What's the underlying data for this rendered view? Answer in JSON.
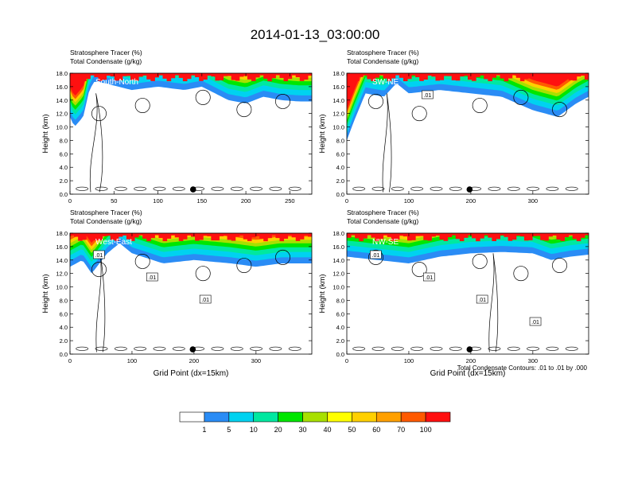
{
  "figure": {
    "title": "2014-01-13_03:00:00",
    "footnote": "Total Condensate Contours: .01 to .01 by .000",
    "colorbar": {
      "colors": [
        "#ffffff",
        "#2a8cf5",
        "#00d2f0",
        "#00e8a0",
        "#00e600",
        "#a8e000",
        "#ffff00",
        "#ffd000",
        "#ffa000",
        "#ff5a00",
        "#ff1010"
      ],
      "labels": [
        "1",
        "5",
        "10",
        "20",
        "30",
        "40",
        "50",
        "60",
        "70",
        "100"
      ]
    }
  },
  "chart_data": [
    {
      "type": "heatmap",
      "panel_label": "South-North",
      "header_line1": "Stratosphere Tracer   (%)",
      "header_line2": "Total Condensate   (g/kg)",
      "ylabel": "Height (km)",
      "xlabel": "",
      "xlim": [
        0,
        275
      ],
      "ylim": [
        0,
        18
      ],
      "x_ticks": [
        "0",
        "50",
        "100",
        "150",
        "200",
        "250"
      ],
      "x_tick_values": [
        0,
        50,
        100,
        150,
        200,
        250
      ],
      "y_ticks": [
        "0.0",
        "2.0",
        "4.0",
        "6.0",
        "8.0",
        "10.0",
        "12.0",
        "14.0",
        "16.0",
        "18.0"
      ],
      "marker_x": 140,
      "contour_labels": [],
      "tropopause_km": [
        [
          0,
          11.5
        ],
        [
          5,
          10
        ],
        [
          15,
          11.5
        ],
        [
          22,
          15.5
        ],
        [
          28,
          16.8
        ],
        [
          40,
          16.5
        ],
        [
          70,
          15.5
        ],
        [
          100,
          16
        ],
        [
          130,
          15.5
        ],
        [
          150,
          16
        ],
        [
          180,
          14
        ],
        [
          200,
          13.5
        ],
        [
          220,
          14.5
        ],
        [
          240,
          14
        ],
        [
          260,
          13.8
        ],
        [
          275,
          13.8
        ]
      ],
      "tracer_levels": [
        {
          "pct": 1,
          "band_km": 0.9
        },
        {
          "pct": 5,
          "band_km": 0.8
        },
        {
          "pct": 10,
          "band_km": 0.7
        },
        {
          "pct": 20,
          "band_km": 0.6
        },
        {
          "pct": 30,
          "band_km": 0.5
        },
        {
          "pct": 50,
          "band_km": 0.5
        },
        {
          "pct": 70,
          "band_km": 0.5
        },
        {
          "pct": 100,
          "band_km": 0
        }
      ]
    },
    {
      "type": "heatmap",
      "panel_label": "SW-NE",
      "header_line1": "Stratosphere Tracer   (%)",
      "header_line2": "Total Condensate   (g/kg)",
      "ylabel": "Height (km)",
      "xlabel": "",
      "xlim": [
        0,
        390
      ],
      "ylim": [
        0,
        18
      ],
      "x_ticks": [
        "0",
        "100",
        "200",
        "300"
      ],
      "x_tick_values": [
        0,
        100,
        200,
        300
      ],
      "y_ticks": [
        "0.0",
        "2.0",
        "4.0",
        "6.0",
        "8.0",
        "10.0",
        "12.0",
        "14.0",
        "16.0",
        "18.0"
      ],
      "marker_x": 198,
      "contour_labels": [
        ".01"
      ],
      "tropopause_km": [
        [
          0,
          8
        ],
        [
          10,
          10.5
        ],
        [
          30,
          15
        ],
        [
          60,
          14.5
        ],
        [
          80,
          16.5
        ],
        [
          100,
          15
        ],
        [
          150,
          15.5
        ],
        [
          200,
          15
        ],
        [
          250,
          14.5
        ],
        [
          300,
          12.5
        ],
        [
          340,
          11.5
        ],
        [
          370,
          13.5
        ],
        [
          390,
          14.5
        ]
      ],
      "tracer_levels": [
        {
          "pct": 1,
          "band_km": 0.9
        },
        {
          "pct": 5,
          "band_km": 0.8
        },
        {
          "pct": 10,
          "band_km": 0.7
        },
        {
          "pct": 20,
          "band_km": 0.6
        },
        {
          "pct": 30,
          "band_km": 0.5
        },
        {
          "pct": 50,
          "band_km": 0.5
        },
        {
          "pct": 70,
          "band_km": 0.5
        },
        {
          "pct": 100,
          "band_km": 0
        }
      ]
    },
    {
      "type": "heatmap",
      "panel_label": "West-East",
      "header_line1": "Stratosphere Tracer   (%)",
      "header_line2": "Total Condensate   (g/kg)",
      "ylabel": "Height (km)",
      "xlabel": "Grid Point (dx=15km)",
      "xlim": [
        0,
        390
      ],
      "ylim": [
        0,
        18
      ],
      "x_ticks": [
        "0",
        "100",
        "200",
        "300"
      ],
      "x_tick_values": [
        0,
        100,
        200,
        300
      ],
      "y_ticks": [
        "0.0",
        "2.0",
        "4.0",
        "6.0",
        "8.0",
        "10.0",
        "12.0",
        "14.0",
        "16.0",
        "18.0"
      ],
      "marker_x": 198,
      "contour_labels": [
        ".01",
        ".01",
        ".01"
      ],
      "tropopause_km": [
        [
          0,
          13
        ],
        [
          20,
          14
        ],
        [
          35,
          12
        ],
        [
          60,
          15
        ],
        [
          80,
          16.5
        ],
        [
          100,
          15
        ],
        [
          150,
          13.5
        ],
        [
          200,
          14
        ],
        [
          260,
          13.5
        ],
        [
          300,
          13
        ],
        [
          340,
          13.5
        ],
        [
          390,
          13.5
        ]
      ],
      "tracer_levels": [
        {
          "pct": 1,
          "band_km": 0.9
        },
        {
          "pct": 5,
          "band_km": 0.8
        },
        {
          "pct": 10,
          "band_km": 0.7
        },
        {
          "pct": 20,
          "band_km": 0.6
        },
        {
          "pct": 30,
          "band_km": 0.5
        },
        {
          "pct": 50,
          "band_km": 0.5
        },
        {
          "pct": 70,
          "band_km": 0.5
        },
        {
          "pct": 100,
          "band_km": 0
        }
      ]
    },
    {
      "type": "heatmap",
      "panel_label": "NW-SE",
      "header_line1": "Stratosphere Tracer   (%)",
      "header_line2": "Total Condensate   (g/kg)",
      "ylabel": "Height (km)",
      "xlabel": "Grid Point (dx=15km)",
      "xlim": [
        0,
        390
      ],
      "ylim": [
        0,
        18
      ],
      "x_ticks": [
        "0",
        "100",
        "200",
        "300"
      ],
      "x_tick_values": [
        0,
        100,
        200,
        300
      ],
      "y_ticks": [
        "0.0",
        "2.0",
        "4.0",
        "6.0",
        "8.0",
        "10.0",
        "12.0",
        "14.0",
        "16.0",
        "18.0"
      ],
      "marker_x": 198,
      "contour_labels": [
        ".01",
        ".01",
        ".01",
        ".01"
      ],
      "tropopause_km": [
        [
          0,
          14.5
        ],
        [
          50,
          14
        ],
        [
          100,
          13.5
        ],
        [
          150,
          14.5
        ],
        [
          200,
          15
        ],
        [
          250,
          15.2
        ],
        [
          300,
          15
        ],
        [
          330,
          14
        ],
        [
          360,
          14.5
        ],
        [
          390,
          14.8
        ]
      ],
      "tracer_levels": [
        {
          "pct": 1,
          "band_km": 0.9
        },
        {
          "pct": 5,
          "band_km": 0.8
        },
        {
          "pct": 10,
          "band_km": 0.7
        },
        {
          "pct": 20,
          "band_km": 0.6
        },
        {
          "pct": 30,
          "band_km": 0.5
        },
        {
          "pct": 50,
          "band_km": 0.5
        },
        {
          "pct": 70,
          "band_km": 0.5
        },
        {
          "pct": 100,
          "band_km": 0
        }
      ]
    }
  ]
}
